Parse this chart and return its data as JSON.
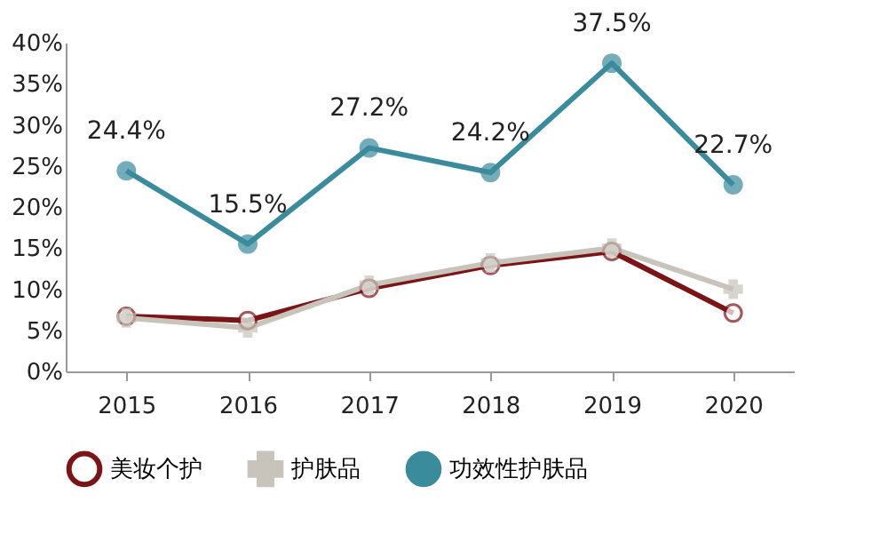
{
  "chart_data": {
    "type": "line",
    "categories": [
      "2015",
      "2016",
      "2017",
      "2018",
      "2019",
      "2020"
    ],
    "series": [
      {
        "name": "美妆个护",
        "color": "#7b1416",
        "marker": "circle",
        "values": [
          6.7,
          6.2,
          10.1,
          12.9,
          14.6,
          7.1
        ]
      },
      {
        "name": "护肤品",
        "color": "#c8c4bc",
        "marker": "cross",
        "values": [
          6.5,
          5.3,
          10.5,
          13.2,
          15.0,
          10.0
        ]
      },
      {
        "name": "功效性护肤品",
        "color": "#3a8b9c",
        "marker": "circle",
        "values": [
          24.4,
          15.5,
          27.2,
          24.2,
          37.5,
          22.7
        ],
        "value_labels": [
          "24.4%",
          "15.5%",
          "27.2%",
          "24.2%",
          "37.5%",
          "22.7%"
        ]
      }
    ],
    "ylim": [
      0,
      40
    ],
    "yticks": [
      {
        "value": 0,
        "label": "0%"
      },
      {
        "value": 5,
        "label": "5%"
      },
      {
        "value": 10,
        "label": "10%"
      },
      {
        "value": 15,
        "label": "15%"
      },
      {
        "value": 20,
        "label": "20%"
      },
      {
        "value": 25,
        "label": "25%"
      },
      {
        "value": 30,
        "label": "30%"
      },
      {
        "value": 35,
        "label": "35%"
      },
      {
        "value": 40,
        "label": "40%"
      }
    ],
    "grid": false,
    "legend": "bottom",
    "line_style": "solid"
  }
}
